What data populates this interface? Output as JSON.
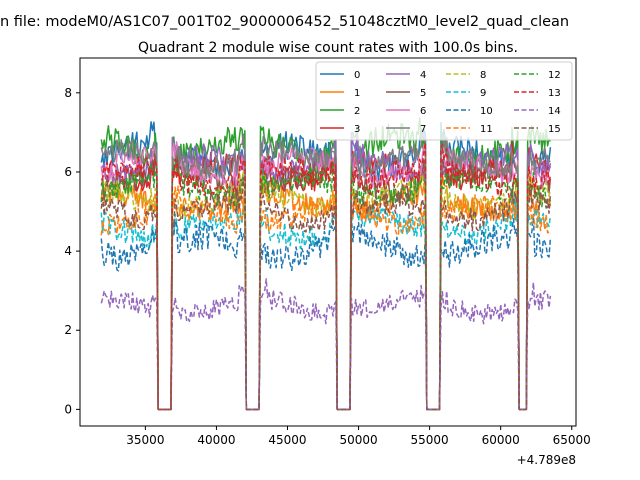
{
  "figure": {
    "suptitle": "n file: modeM0/AS1C07_001T02_9000006452_51048cztM0_level2_quad_clean"
  },
  "chart_data": {
    "type": "line",
    "title": "Quadrant 2 module wise count rates with 100.0s bins.",
    "xlabel": "",
    "ylabel": "",
    "x_offset_label": "+4.789e8",
    "xlim": [
      30400,
      65300
    ],
    "ylim": [
      -0.42,
      8.88
    ],
    "x_ticks": [
      35000,
      40000,
      45000,
      50000,
      55000,
      60000,
      65000
    ],
    "x_tick_labels": [
      "35000",
      "40000",
      "45000",
      "50000",
      "55000",
      "60000",
      "65000"
    ],
    "y_ticks": [
      0,
      2,
      4,
      6,
      8
    ],
    "y_tick_labels": [
      "0",
      "2",
      "4",
      "6",
      "8"
    ],
    "grid": false,
    "legend": {
      "placement": "top-right",
      "columns": 4
    },
    "x_range": [
      31900,
      63500
    ],
    "gaps": [
      [
        35900,
        36800
      ],
      [
        42100,
        43000
      ],
      [
        48500,
        49400
      ],
      [
        54800,
        55700
      ],
      [
        61300,
        61800
      ]
    ],
    "series": [
      {
        "name": "0",
        "color": "#1f77b4",
        "style": "solid",
        "level": 6.4,
        "noise": 0.35
      },
      {
        "name": "1",
        "color": "#ff7f0e",
        "style": "solid",
        "level": 5.2,
        "noise": 0.3
      },
      {
        "name": "2",
        "color": "#2ca02c",
        "style": "solid",
        "level": 6.6,
        "noise": 0.35
      },
      {
        "name": "3",
        "color": "#d62728",
        "style": "solid",
        "level": 6.0,
        "noise": 0.3
      },
      {
        "name": "4",
        "color": "#9467bd",
        "style": "solid",
        "level": 6.2,
        "noise": 0.3
      },
      {
        "name": "5",
        "color": "#8c564b",
        "style": "solid",
        "level": 5.8,
        "noise": 0.3
      },
      {
        "name": "6",
        "color": "#e377c2",
        "style": "solid",
        "level": 6.1,
        "noise": 0.3
      },
      {
        "name": "7",
        "color": "#7f7f7f",
        "style": "solid",
        "level": 6.3,
        "noise": 0.3
      },
      {
        "name": "8",
        "color": "#bcbd22",
        "style": "dashed",
        "level": 5.3,
        "noise": 0.3
      },
      {
        "name": "9",
        "color": "#17becf",
        "style": "dashed",
        "level": 4.6,
        "noise": 0.3
      },
      {
        "name": "10",
        "color": "#1f77b4",
        "style": "dashed",
        "level": 4.1,
        "noise": 0.35
      },
      {
        "name": "11",
        "color": "#ff7f0e",
        "style": "dashed",
        "level": 4.9,
        "noise": 0.3
      },
      {
        "name": "12",
        "color": "#2ca02c",
        "style": "dashed",
        "level": 5.6,
        "noise": 0.3
      },
      {
        "name": "13",
        "color": "#d62728",
        "style": "dashed",
        "level": 5.9,
        "noise": 0.3
      },
      {
        "name": "14",
        "color": "#9467bd",
        "style": "dashed",
        "level": 2.6,
        "noise": 0.25
      },
      {
        "name": "15",
        "color": "#8c564b",
        "style": "dashed",
        "level": 5.0,
        "noise": 0.3
      }
    ]
  }
}
